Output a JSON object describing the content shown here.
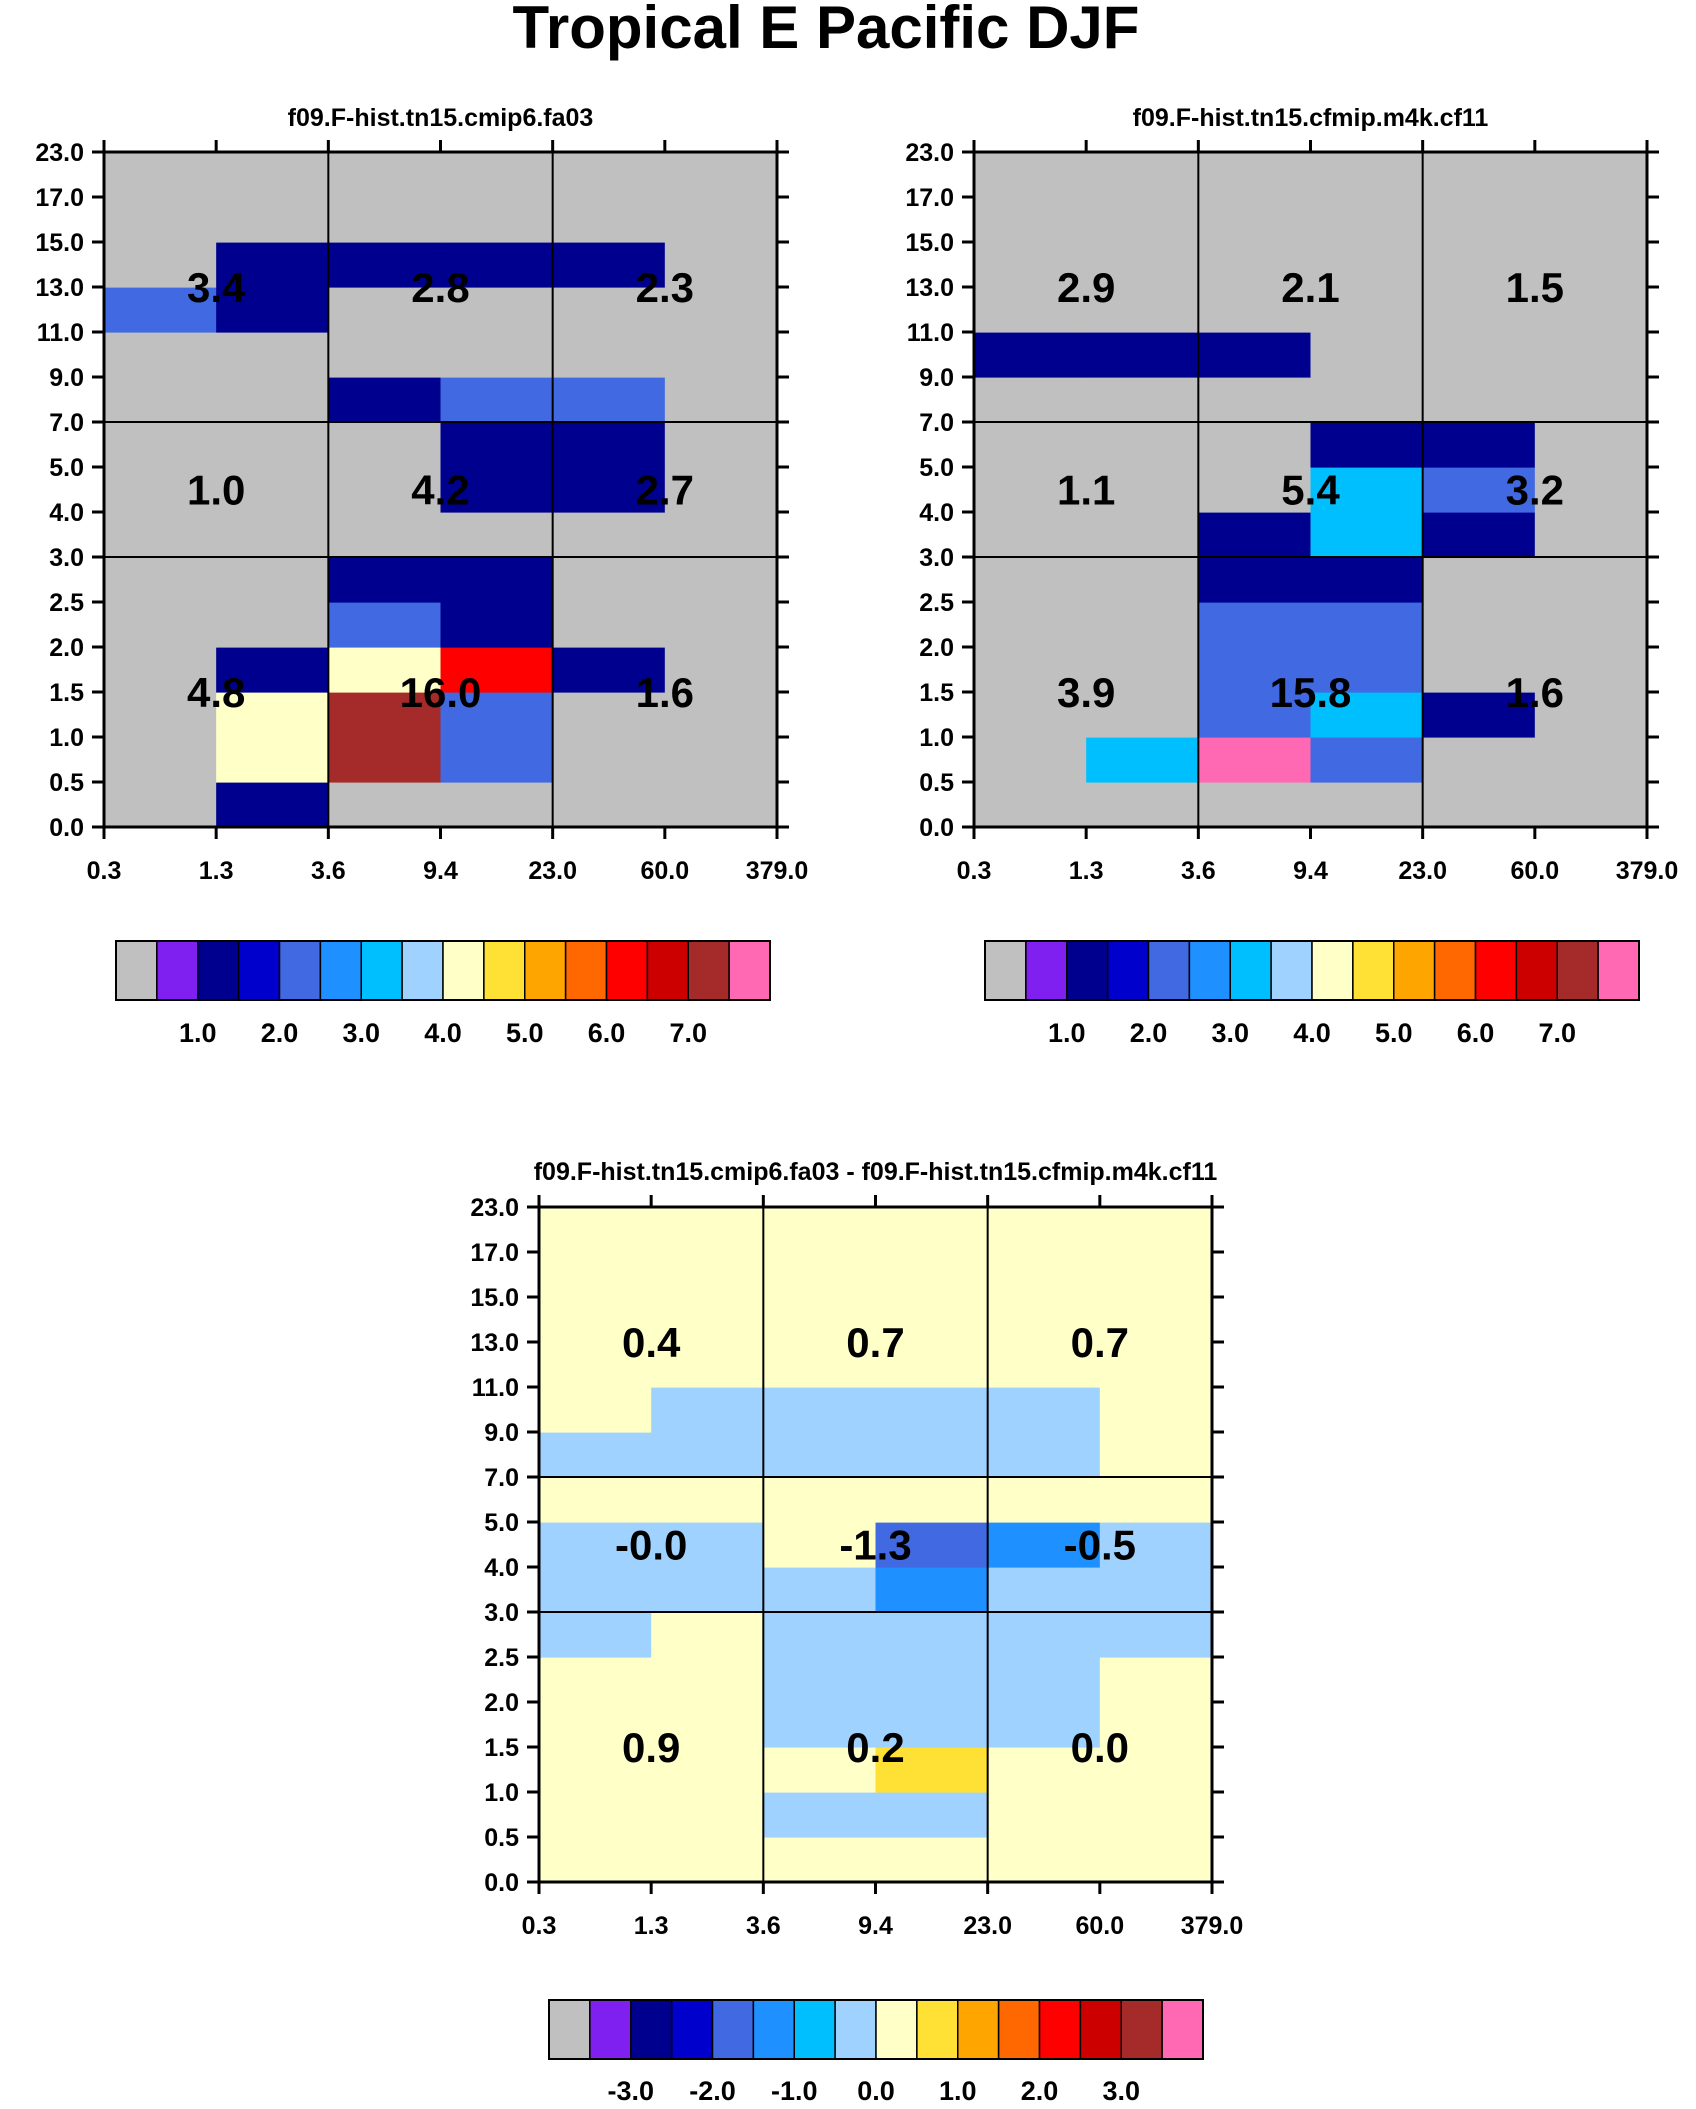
{
  "figure": {
    "title": "Tropical E Pacific DJF"
  },
  "chart_data": [
    {
      "type": "heatmap",
      "title": "f09.F-hist.tn15.cmip6.fa03",
      "x_ticks": [
        "0.3",
        "1.3",
        "3.6",
        "9.4",
        "23.0",
        "60.0",
        "379.0"
      ],
      "y_ticks": [
        "0.0",
        "0.5",
        "1.0",
        "1.5",
        "2.0",
        "2.5",
        "3.0",
        "4.0",
        "5.0",
        "7.0",
        "9.0",
        "11.0",
        "13.0",
        "15.0",
        "17.0",
        "23.0"
      ],
      "region_x_bounds": [
        "0.3",
        "3.6",
        "23.0",
        "379.0"
      ],
      "region_y_bounds": [
        "0.0",
        "3.0",
        "7.0",
        "23.0"
      ],
      "region_values": [
        [
          "4.8",
          "16.0",
          "1.6"
        ],
        [
          "1.0",
          "4.2",
          "2.7"
        ],
        [
          "3.4",
          "2.8",
          "2.3"
        ]
      ],
      "values": [
        [
          0,
          1,
          0,
          0,
          0,
          0
        ],
        [
          0,
          4,
          7,
          2,
          0,
          0
        ],
        [
          0,
          4,
          7,
          2,
          0,
          0
        ],
        [
          0,
          1,
          4,
          6,
          1,
          0
        ],
        [
          0,
          0,
          2,
          1,
          0,
          0
        ],
        [
          0,
          0,
          1,
          1,
          0,
          0
        ],
        [
          0,
          0,
          0,
          0,
          0,
          0
        ],
        [
          0,
          0,
          0,
          1,
          1,
          0
        ],
        [
          0,
          0,
          0,
          1,
          1,
          0
        ],
        [
          0,
          0,
          1,
          2,
          2,
          0
        ],
        [
          0,
          0,
          0,
          0,
          0,
          0
        ],
        [
          2,
          1,
          0,
          0,
          0,
          0
        ],
        [
          0,
          1,
          1,
          1,
          1,
          0
        ],
        [
          0,
          0,
          0,
          0,
          0,
          0
        ],
        [
          0,
          0,
          0,
          0,
          0,
          0
        ]
      ],
      "colorbar": {
        "labels": [
          "1.0",
          "2.0",
          "3.0",
          "4.0",
          "5.0",
          "6.0",
          "7.0"
        ]
      }
    },
    {
      "type": "heatmap",
      "title": "f09.F-hist.tn15.cfmip.m4k.cf11",
      "x_ticks": [
        "0.3",
        "1.3",
        "3.6",
        "9.4",
        "23.0",
        "60.0",
        "379.0"
      ],
      "y_ticks": [
        "0.0",
        "0.5",
        "1.0",
        "1.5",
        "2.0",
        "2.5",
        "3.0",
        "4.0",
        "5.0",
        "7.0",
        "9.0",
        "11.0",
        "13.0",
        "15.0",
        "17.0",
        "23.0"
      ],
      "region_x_bounds": [
        "0.3",
        "3.6",
        "23.0",
        "379.0"
      ],
      "region_y_bounds": [
        "0.0",
        "3.0",
        "7.0",
        "23.0"
      ],
      "region_values": [
        [
          "3.9",
          "15.8",
          "1.6"
        ],
        [
          "1.1",
          "5.4",
          "3.2"
        ],
        [
          "2.9",
          "2.1",
          "1.5"
        ]
      ],
      "values": [
        [
          0,
          0,
          0,
          0,
          0,
          0
        ],
        [
          0,
          3,
          9,
          2,
          0,
          0
        ],
        [
          0,
          0,
          2,
          3,
          1,
          0
        ],
        [
          0,
          0,
          2,
          2,
          0,
          0
        ],
        [
          0,
          0,
          2,
          2,
          0,
          0
        ],
        [
          0,
          0,
          1,
          1,
          0,
          0
        ],
        [
          0,
          0,
          1,
          3,
          1,
          0
        ],
        [
          0,
          0,
          0,
          3,
          2,
          0
        ],
        [
          0,
          0,
          0,
          1,
          1,
          0
        ],
        [
          0,
          0,
          0,
          0,
          0,
          0
        ],
        [
          1,
          1,
          1,
          0,
          0,
          0
        ],
        [
          0,
          0,
          0,
          0,
          0,
          0
        ],
        [
          0,
          0,
          0,
          0,
          0,
          0
        ],
        [
          0,
          0,
          0,
          0,
          0,
          0
        ],
        [
          0,
          0,
          0,
          0,
          0,
          0
        ]
      ],
      "colorbar": {
        "labels": [
          "1.0",
          "2.0",
          "3.0",
          "4.0",
          "5.0",
          "6.0",
          "7.0"
        ]
      }
    },
    {
      "type": "heatmap",
      "title": "f09.F-hist.tn15.cmip6.fa03 - f09.F-hist.tn15.cfmip.m4k.cf11",
      "x_ticks": [
        "0.3",
        "1.3",
        "3.6",
        "9.4",
        "23.0",
        "60.0",
        "379.0"
      ],
      "y_ticks": [
        "0.0",
        "0.5",
        "1.0",
        "1.5",
        "2.0",
        "2.5",
        "3.0",
        "4.0",
        "5.0",
        "7.0",
        "9.0",
        "11.0",
        "13.0",
        "15.0",
        "17.0",
        "23.0"
      ],
      "region_x_bounds": [
        "0.3",
        "3.6",
        "23.0",
        "379.0"
      ],
      "region_y_bounds": [
        "0.0",
        "3.0",
        "7.0",
        "23.0"
      ],
      "region_values": [
        [
          "0.9",
          "0.2",
          "0.0"
        ],
        [
          "-0.0",
          "-1.3",
          "-0.5"
        ],
        [
          "0.4",
          "0.7",
          "0.7"
        ]
      ],
      "values": [
        [
          0,
          0,
          0,
          0,
          0,
          0
        ],
        [
          0,
          0,
          -0.2,
          -0.2,
          0,
          0
        ],
        [
          0,
          0,
          0.2,
          0.8,
          0,
          0
        ],
        [
          0,
          0,
          -0.2,
          -0.2,
          -0.2,
          0
        ],
        [
          0,
          0,
          -0.2,
          -0.2,
          -0.2,
          0
        ],
        [
          -0.2,
          0,
          -0.2,
          -0.2,
          -0.2,
          -0.2
        ],
        [
          -0.2,
          -0.2,
          -0.2,
          -1.2,
          -0.2,
          -0.2
        ],
        [
          -0.2,
          -0.2,
          0,
          -1.8,
          -1.2,
          -0.2
        ],
        [
          0,
          0,
          0.2,
          0.2,
          0,
          0
        ],
        [
          -0.2,
          -0.2,
          -0.2,
          -0.2,
          -0.2,
          0
        ],
        [
          0,
          -0.2,
          -0.2,
          -0.2,
          -0.2,
          0
        ],
        [
          0,
          0,
          0,
          0,
          0,
          0
        ],
        [
          0,
          0,
          0,
          0,
          0,
          0
        ],
        [
          0,
          0,
          0,
          0,
          0,
          0
        ],
        [
          0,
          0,
          0,
          0,
          0,
          0
        ]
      ],
      "colorbar": {
        "labels": [
          "-3.0",
          "-2.0",
          "-1.0",
          "0.0",
          "1.0",
          "2.0",
          "3.0"
        ]
      }
    }
  ],
  "palette": {
    "frequency": [
      {
        "max": 0.5,
        "color": "#c0c0c0"
      },
      {
        "max": 1.0,
        "color": "#8020f0"
      },
      {
        "max": 1.5,
        "color": "#00008f"
      },
      {
        "max": 2.0,
        "color": "#0000cd"
      },
      {
        "max": 2.5,
        "color": "#4169e1"
      },
      {
        "max": 3.0,
        "color": "#1e90ff"
      },
      {
        "max": 3.5,
        "color": "#00bfff"
      },
      {
        "max": 4.0,
        "color": "#a0d2ff"
      },
      {
        "max": 4.5,
        "color": "#ffffc8"
      },
      {
        "max": 5.0,
        "color": "#ffe135"
      },
      {
        "max": 5.5,
        "color": "#ffa500"
      },
      {
        "max": 6.0,
        "color": "#ff6800"
      },
      {
        "max": 6.5,
        "color": "#ff0000"
      },
      {
        "max": 7.0,
        "color": "#cd0000"
      },
      {
        "max": 7.5,
        "color": "#a52a2a"
      },
      {
        "max": 999,
        "color": "#ff69b4"
      }
    ],
    "difference": [
      {
        "max": -3.5,
        "color": "#c0c0c0"
      },
      {
        "max": -3.0,
        "color": "#8020f0"
      },
      {
        "max": -2.5,
        "color": "#00008f"
      },
      {
        "max": -2.0,
        "color": "#0000cd"
      },
      {
        "max": -1.5,
        "color": "#4169e1"
      },
      {
        "max": -1.0,
        "color": "#1e90ff"
      },
      {
        "max": -0.5,
        "color": "#00bfff"
      },
      {
        "max": 0.0,
        "color": "#a0d2ff"
      },
      {
        "max": 0.5,
        "color": "#ffffc8"
      },
      {
        "max": 1.0,
        "color": "#ffe135"
      },
      {
        "max": 1.5,
        "color": "#ffa500"
      },
      {
        "max": 2.0,
        "color": "#ff6800"
      },
      {
        "max": 2.5,
        "color": "#ff0000"
      },
      {
        "max": 3.0,
        "color": "#cd0000"
      },
      {
        "max": 3.5,
        "color": "#a52a2a"
      },
      {
        "max": 999,
        "color": "#ff69b4"
      }
    ]
  }
}
